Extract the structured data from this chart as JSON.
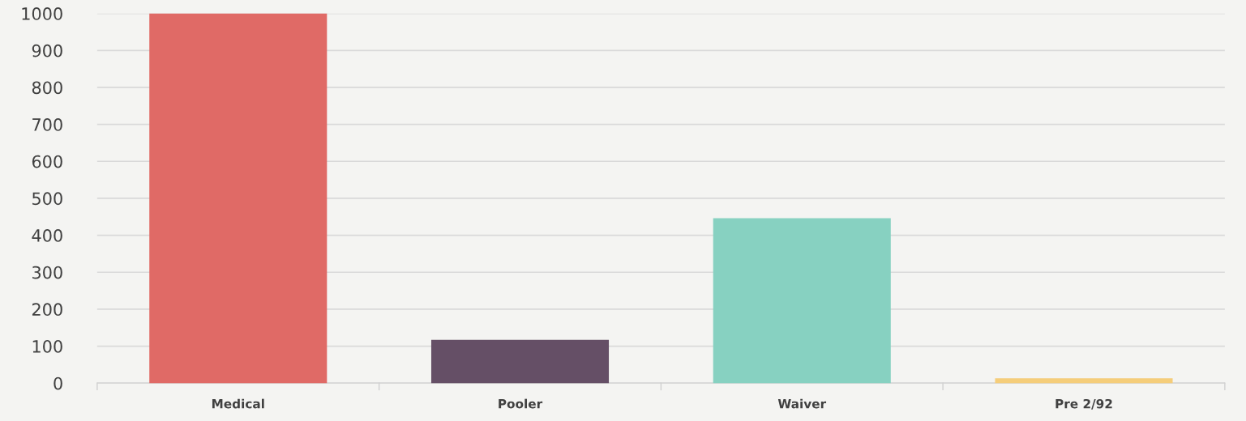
{
  "chart_data": {
    "type": "bar",
    "categories": [
      "Medical",
      "Pooler",
      "Waiver",
      "Pre 2/92"
    ],
    "values": [
      1000,
      117,
      446,
      13
    ],
    "colors": [
      "#e06a66",
      "#654f66",
      "#87d1c1",
      "#f5cd7a"
    ],
    "ylim": [
      0,
      1000
    ],
    "yticks": [
      0,
      100,
      200,
      300,
      400,
      500,
      600,
      700,
      800,
      900,
      1000
    ],
    "grid": "y",
    "legend": false
  }
}
